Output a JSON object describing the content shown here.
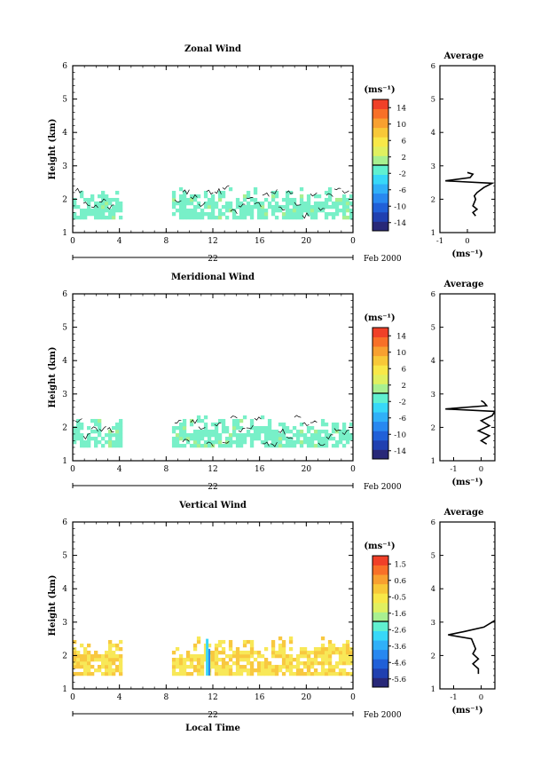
{
  "date_label": "Feb 2000",
  "day_label": "22",
  "time_axis_label": "Local Time",
  "height_axis_label": "Height (km)",
  "unit_label": "(ms⁻¹)",
  "average_title": "Average",
  "colors": {
    "scale": [
      "#282878",
      "#2040b0",
      "#2060d8",
      "#2888f0",
      "#30b0f8",
      "#38d8f8",
      "#60f0d0",
      "#a8f090",
      "#e0f060",
      "#f8e848",
      "#f8c838",
      "#f8a030",
      "#f87028",
      "#f04028"
    ],
    "echo_light": "#78f0c8",
    "echo_yellow": "#f8e858",
    "echo_orange": "#f8c840"
  },
  "chart_data": [
    {
      "type": "heatmap",
      "title": "Zonal Wind",
      "x_ticks": [
        "0",
        "4",
        "8",
        "12",
        "16",
        "20",
        "0"
      ],
      "xlim_hours": [
        0,
        24
      ],
      "y_ticks": [
        "1",
        "2",
        "3",
        "4",
        "5",
        "6"
      ],
      "ylim_km": [
        1,
        6
      ],
      "colorbar_ticks": [
        "14",
        "10",
        "6",
        "2",
        "-2",
        "-6",
        "-10",
        "-14"
      ],
      "colorbar_range": [
        -16,
        16
      ],
      "data_segments_hours": [
        [
          0,
          4
        ],
        [
          8.5,
          24
        ]
      ],
      "echo_height_range_km": [
        1.4,
        2.4
      ],
      "average_profile": {
        "xlim": [
          -1,
          1
        ],
        "x_ticks": [
          "-1",
          "0"
        ],
        "y_ticks": [
          "1",
          "2",
          "3",
          "4",
          "5",
          "6"
        ],
        "points": [
          [
            0.3,
            1.5
          ],
          [
            0.2,
            1.6
          ],
          [
            0.35,
            1.7
          ],
          [
            0.2,
            1.8
          ],
          [
            0.25,
            1.9
          ],
          [
            0.3,
            2.0
          ],
          [
            0.25,
            2.1
          ],
          [
            0.35,
            2.2
          ],
          [
            0.6,
            2.35
          ],
          [
            0.9,
            2.48
          ],
          [
            -0.8,
            2.55
          ],
          [
            0.1,
            2.65
          ],
          [
            0.2,
            2.75
          ],
          [
            0.0,
            2.8
          ]
        ]
      }
    },
    {
      "type": "heatmap",
      "title": "Meridional Wind",
      "x_ticks": [
        "0",
        "4",
        "8",
        "12",
        "16",
        "20",
        "0"
      ],
      "xlim_hours": [
        0,
        24
      ],
      "y_ticks": [
        "1",
        "2",
        "3",
        "4",
        "5",
        "6"
      ],
      "ylim_km": [
        1,
        6
      ],
      "colorbar_ticks": [
        "14",
        "10",
        "6",
        "2",
        "-2",
        "-6",
        "-10",
        "-14"
      ],
      "colorbar_range": [
        -16,
        16
      ],
      "data_segments_hours": [
        [
          0,
          4
        ],
        [
          8.5,
          24
        ]
      ],
      "echo_height_range_km": [
        1.4,
        2.4
      ],
      "average_profile": {
        "xlim": [
          -1.5,
          0.5
        ],
        "x_ticks": [
          "-1",
          "0"
        ],
        "y_ticks": [
          "1",
          "2",
          "3",
          "4",
          "5",
          "6"
        ],
        "points": [
          [
            0.2,
            1.5
          ],
          [
            0.0,
            1.6
          ],
          [
            0.3,
            1.75
          ],
          [
            -0.1,
            1.9
          ],
          [
            0.3,
            2.05
          ],
          [
            0.0,
            2.2
          ],
          [
            0.4,
            2.35
          ],
          [
            0.5,
            2.48
          ],
          [
            -1.3,
            2.55
          ],
          [
            0.2,
            2.65
          ],
          [
            0.1,
            2.75
          ],
          [
            0.0,
            2.8
          ]
        ]
      }
    },
    {
      "type": "heatmap",
      "title": "Vertical Wind",
      "x_ticks": [
        "0",
        "4",
        "8",
        "12",
        "16",
        "20",
        "0"
      ],
      "xlim_hours": [
        0,
        24
      ],
      "y_ticks": [
        "1",
        "2",
        "3",
        "4",
        "5",
        "6"
      ],
      "ylim_km": [
        1,
        6
      ],
      "colorbar_ticks": [
        "1.5",
        "0.6",
        "-0.5",
        "-1.6",
        "-2.6",
        "-3.6",
        "-4.6",
        "-5.6"
      ],
      "colorbar_range": [
        -6,
        2
      ],
      "data_segments_hours": [
        [
          0,
          4
        ],
        [
          8.5,
          24
        ]
      ],
      "echo_height_range_km": [
        1.4,
        2.6
      ],
      "average_profile": {
        "xlim": [
          -1.5,
          0.5
        ],
        "x_ticks": [
          "-1",
          "0"
        ],
        "y_ticks": [
          "1",
          "2",
          "3",
          "4",
          "5",
          "6"
        ],
        "points": [
          [
            -0.1,
            1.45
          ],
          [
            -0.1,
            1.6
          ],
          [
            -0.3,
            1.75
          ],
          [
            -0.1,
            1.9
          ],
          [
            -0.3,
            2.05
          ],
          [
            -0.2,
            2.2
          ],
          [
            -0.3,
            2.4
          ],
          [
            -0.35,
            2.5
          ],
          [
            -1.2,
            2.62
          ],
          [
            -0.6,
            2.72
          ],
          [
            0.1,
            2.85
          ],
          [
            0.5,
            3.05
          ]
        ]
      }
    }
  ]
}
